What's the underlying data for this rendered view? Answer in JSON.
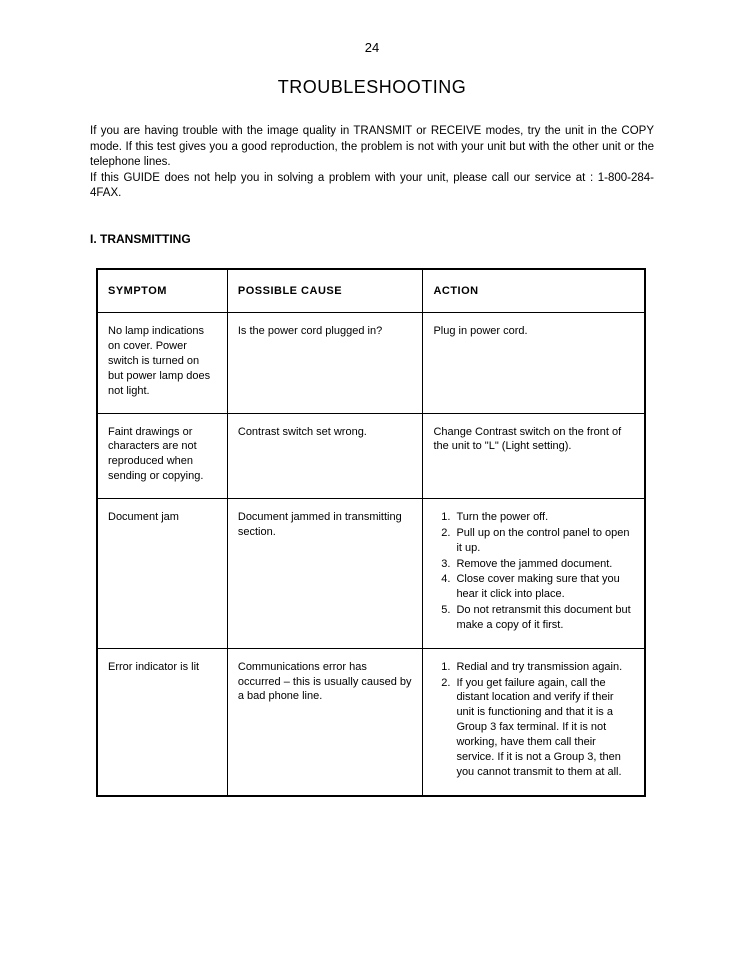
{
  "page_number": "24",
  "title": "TROUBLESHOOTING",
  "intro_text": "If you are having trouble with the image quality in TRANSMIT or RECEIVE modes, try the unit in the COPY mode.  If this test gives you a good reproduction, the problem is not with your unit but with the other unit or the telephone lines.\nIf this GUIDE does not help you in solving a problem with your unit, please call our service at : 1-800-284-4FAX.",
  "section_heading": "I.   TRANSMITTING",
  "table": {
    "headers": {
      "symptom": "SYMPTOM",
      "cause": "POSSIBLE  CAUSE",
      "action": "ACTION"
    },
    "rows": [
      {
        "symptom": "No lamp indications on cover.  Power switch is turned on but power lamp does not light.",
        "cause": "Is the power cord plugged in?",
        "action_text": "Plug in power cord."
      },
      {
        "symptom": "Faint drawings or characters are not reproduced when sending or copying.",
        "cause": "Contrast switch set wrong.",
        "action_text": "Change Contrast switch on the front of the unit to \"L\" (Light setting)."
      },
      {
        "symptom": "Document jam",
        "cause": "Document jammed in transmitting section.",
        "action_list": [
          "Turn the power off.",
          "Pull up on the control panel to open it up.",
          "Remove the jammed document.",
          "Close cover making sure that you hear it click into place.",
          "Do not retransmit this document but make a copy of it first."
        ]
      },
      {
        "symptom": "Error indicator is lit",
        "cause": "Communications error has occurred – this is usually caused by a bad phone line.",
        "action_list": [
          "Redial and try transmission again.",
          "If you get failure again, call the distant location and verify if their unit is functioning and that it is a Group 3 fax terminal.  If it is not working, have them call their service.  If it is not a Group 3, then you cannot transmit to them at all."
        ]
      }
    ]
  }
}
